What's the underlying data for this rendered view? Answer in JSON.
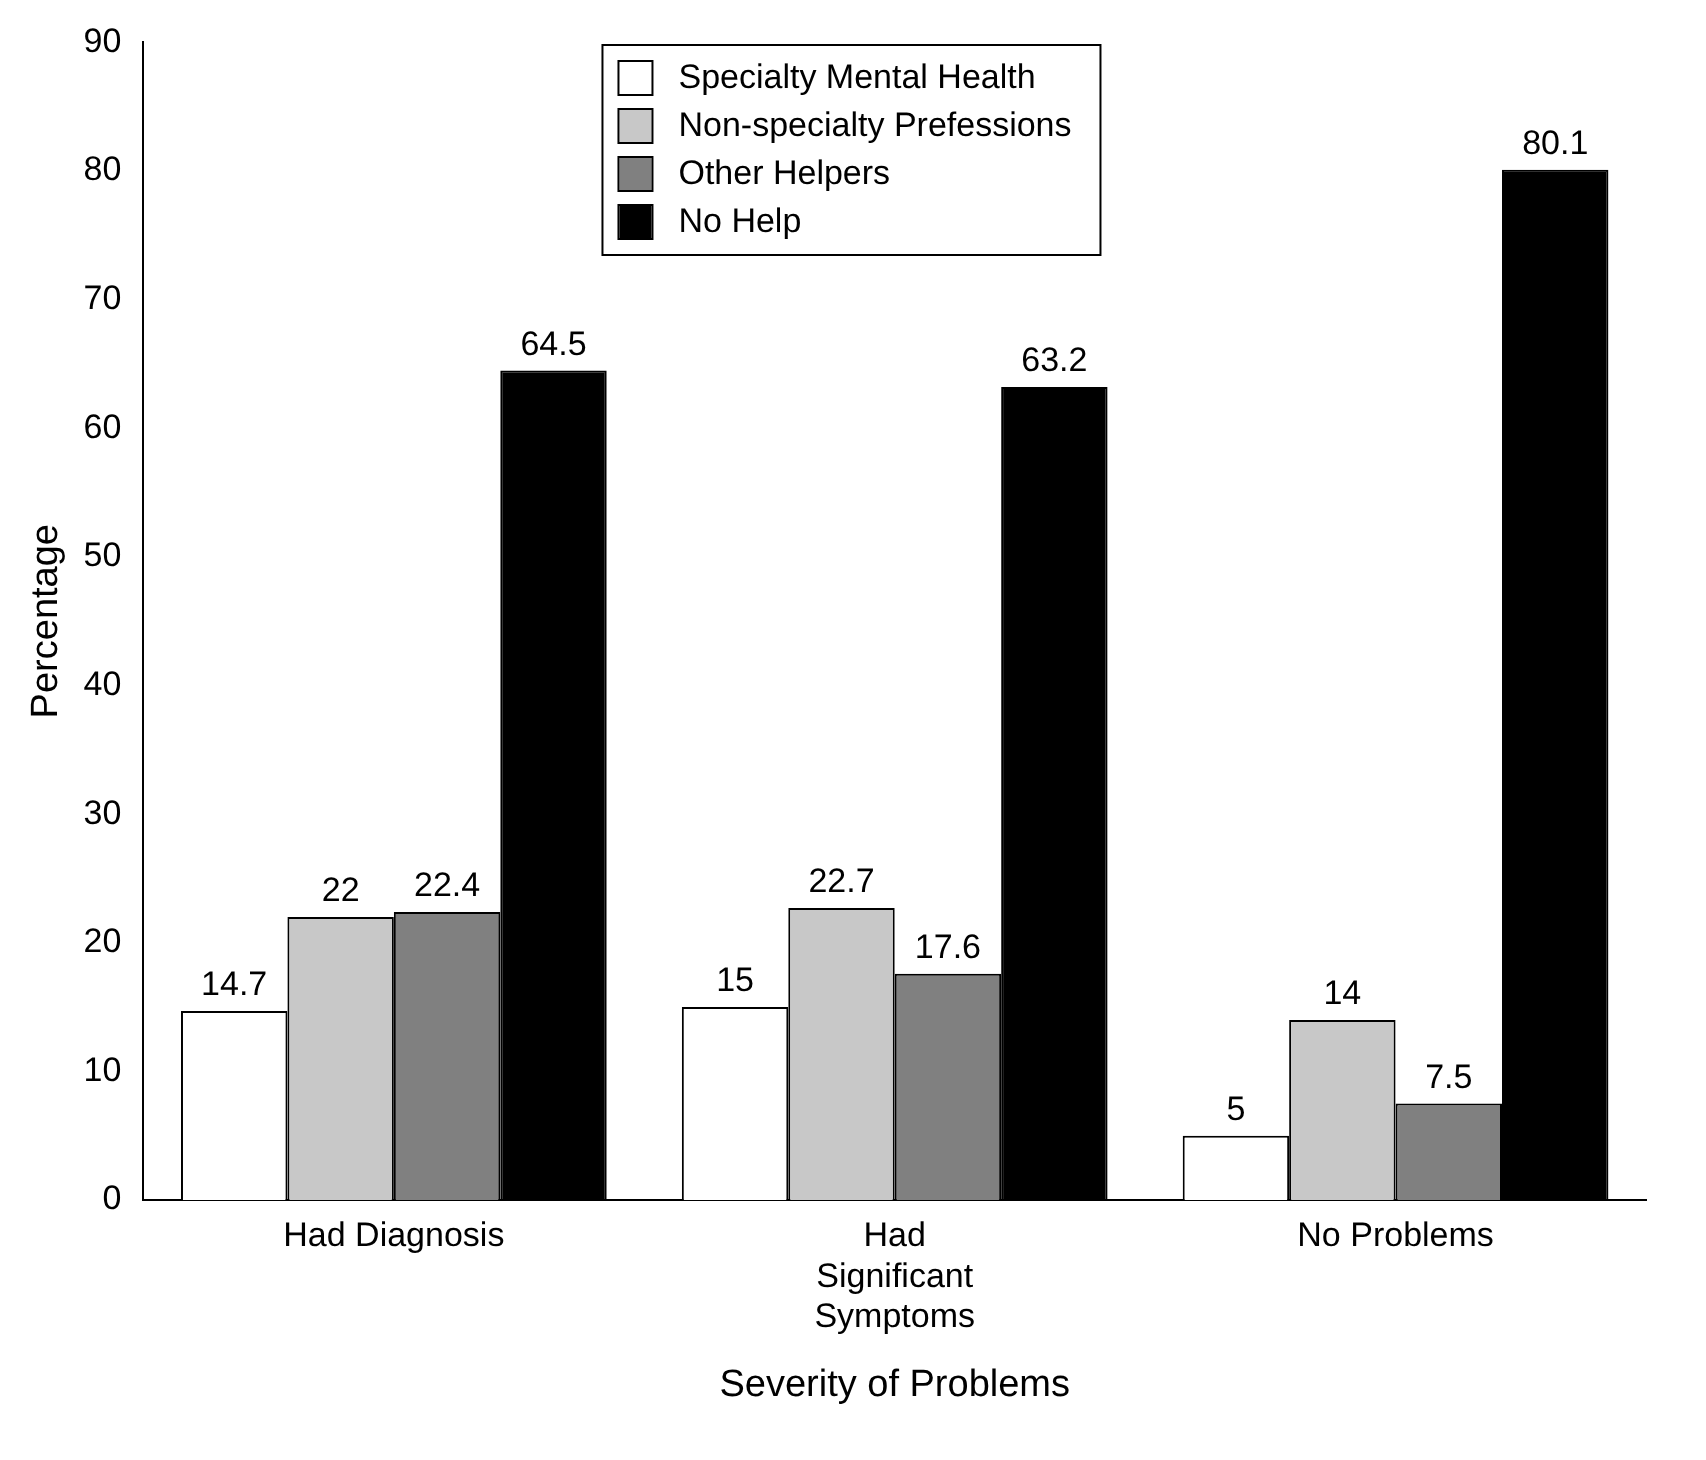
{
  "chart_data": {
    "type": "bar",
    "xlabel": "Severity of Problems",
    "ylabel": "Percentage",
    "categories": [
      "Had Diagnosis",
      "Had Significant Symptoms",
      "No Problems"
    ],
    "series": [
      {
        "name": "Specialty Mental Health",
        "color": "#ffffff",
        "values": [
          14.7,
          15,
          5
        ]
      },
      {
        "name": "Non-specialty Prefessions",
        "color": "#c8c8c8",
        "values": [
          22,
          22.7,
          14
        ]
      },
      {
        "name": "Other Helpers",
        "color": "#808080",
        "values": [
          22.4,
          17.6,
          7.5
        ]
      },
      {
        "name": "No Help",
        "color": "#000000",
        "values": [
          64.5,
          63.2,
          80.1
        ]
      }
    ],
    "ylim": [
      0,
      90
    ],
    "yticks": [
      0,
      10,
      20,
      30,
      40,
      50,
      60,
      70,
      80,
      90
    ],
    "grid": false,
    "legend": "top",
    "data_labels": true
  }
}
